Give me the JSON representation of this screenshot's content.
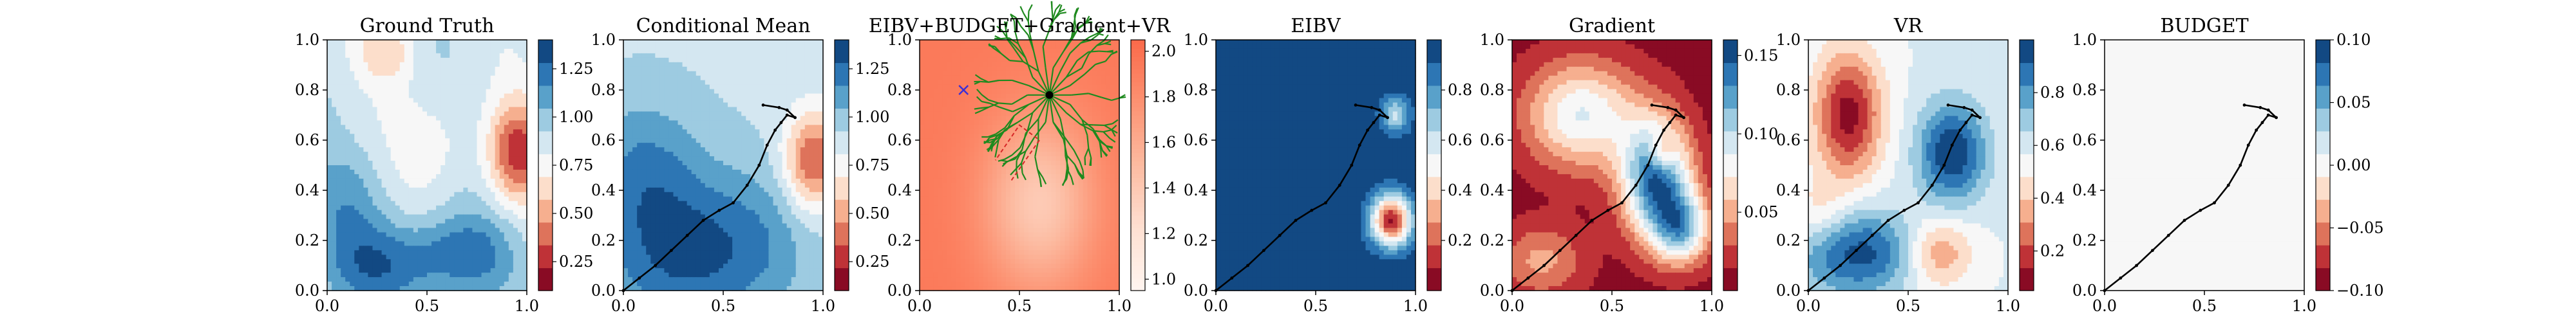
{
  "figure": {
    "panels": [
      {
        "id": "gt",
        "title": "Ground Truth"
      },
      {
        "id": "cm",
        "title": "Conditional Mean"
      },
      {
        "id": "comb",
        "title": "EIBV+BUDGET+Gradient+VR"
      },
      {
        "id": "eibv",
        "title": "EIBV"
      },
      {
        "id": "grad",
        "title": "Gradient"
      },
      {
        "id": "vr",
        "title": "VR"
      },
      {
        "id": "budget",
        "title": "BUDGET"
      }
    ]
  },
  "chart_data": [
    {
      "type": "heatmap",
      "title": "Ground Truth",
      "colormap": "RdBu",
      "xlim": [
        0,
        1
      ],
      "ylim": [
        0,
        1
      ],
      "xticks": [
        "0.0",
        "0.5",
        "1.0"
      ],
      "yticks": [
        "0.0",
        "0.2",
        "0.4",
        "0.6",
        "0.8",
        "1.0"
      ],
      "colorbar": {
        "ticks": [
          "0.25",
          "0.50",
          "0.75",
          "1.00",
          "1.25"
        ],
        "range": [
          0.1,
          1.4
        ]
      },
      "path": false
    },
    {
      "type": "heatmap",
      "title": "Conditional Mean",
      "colormap": "RdBu",
      "xlim": [
        0,
        1
      ],
      "ylim": [
        0,
        1
      ],
      "xticks": [
        "0.0",
        "0.5",
        "1.0"
      ],
      "yticks": [
        "0.0",
        "0.2",
        "0.4",
        "0.6",
        "0.8",
        "1.0"
      ],
      "colorbar": {
        "ticks": [
          "0.25",
          "0.50",
          "0.75",
          "1.00",
          "1.25"
        ],
        "range": [
          0.1,
          1.4
        ]
      },
      "path": true
    },
    {
      "type": "heatmap",
      "title": "EIBV+BUDGET+Gradient+VR",
      "colormap": "Reds",
      "xlim": [
        0,
        1
      ],
      "ylim": [
        0,
        1
      ],
      "xticks": [
        "0.0",
        "0.5",
        "1.0"
      ],
      "yticks": [
        "0.0",
        "0.2",
        "0.4",
        "0.6",
        "0.8",
        "1.0"
      ],
      "colorbar": {
        "ticks": [
          "1.0",
          "1.2",
          "1.4",
          "1.6",
          "1.8",
          "2.0"
        ],
        "range": [
          0.95,
          2.05
        ]
      },
      "tree": {
        "root": [
          0.65,
          0.78
        ],
        "current": [
          0.22,
          0.8
        ]
      }
    },
    {
      "type": "heatmap",
      "title": "EIBV",
      "colormap": "RdBu",
      "xlim": [
        0,
        1
      ],
      "ylim": [
        0,
        1
      ],
      "xticks": [
        "0.0",
        "0.5",
        "1.0"
      ],
      "yticks": [
        "0.0",
        "0.2",
        "0.4",
        "0.6",
        "0.8",
        "1.0"
      ],
      "colorbar": {
        "ticks": [
          "0.2",
          "0.4",
          "0.6",
          "0.8"
        ],
        "range": [
          0.0,
          1.0
        ]
      },
      "path": true
    },
    {
      "type": "heatmap",
      "title": "Gradient",
      "colormap": "RdBu",
      "xlim": [
        0,
        1
      ],
      "ylim": [
        0,
        1
      ],
      "xticks": [
        "0.0",
        "0.5",
        "1.0"
      ],
      "yticks": [
        "0.0",
        "0.2",
        "0.4",
        "0.6",
        "0.8",
        "1.0"
      ],
      "colorbar": {
        "ticks": [
          "0.05",
          "0.10",
          "0.15"
        ],
        "range": [
          0.0,
          0.16
        ]
      },
      "path": true
    },
    {
      "type": "heatmap",
      "title": "VR",
      "colormap": "RdBu",
      "xlim": [
        0,
        1
      ],
      "ylim": [
        0,
        1
      ],
      "xticks": [
        "0.0",
        "0.5",
        "1.0"
      ],
      "yticks": [
        "0.0",
        "0.2",
        "0.4",
        "0.6",
        "0.8",
        "1.0"
      ],
      "colorbar": {
        "ticks": [
          "0.2",
          "0.4",
          "0.6",
          "0.8"
        ],
        "range": [
          0.05,
          1.0
        ]
      },
      "path": true
    },
    {
      "type": "heatmap",
      "title": "BUDGET",
      "colormap": "RdBu",
      "xlim": [
        0,
        1
      ],
      "ylim": [
        0,
        1
      ],
      "xticks": [
        "0.0",
        "0.5",
        "1.0"
      ],
      "yticks": [
        "0.0",
        "0.2",
        "0.4",
        "0.6",
        "0.8",
        "1.0"
      ],
      "colorbar": {
        "ticks": [
          "−0.10",
          "−0.05",
          "0.00",
          "0.05",
          "0.10"
        ],
        "range": [
          -0.1,
          0.1
        ]
      },
      "path": true
    }
  ],
  "trajectory": {
    "points": [
      [
        0.0,
        0.0
      ],
      [
        0.08,
        0.05
      ],
      [
        0.16,
        0.1
      ],
      [
        0.24,
        0.16
      ],
      [
        0.32,
        0.22
      ],
      [
        0.4,
        0.28
      ],
      [
        0.48,
        0.32
      ],
      [
        0.55,
        0.35
      ],
      [
        0.62,
        0.42
      ],
      [
        0.68,
        0.5
      ],
      [
        0.72,
        0.58
      ],
      [
        0.76,
        0.64
      ],
      [
        0.79,
        0.67
      ],
      [
        0.82,
        0.7
      ],
      [
        0.86,
        0.69
      ],
      [
        0.82,
        0.72
      ],
      [
        0.78,
        0.73
      ],
      [
        0.7,
        0.74
      ]
    ]
  }
}
